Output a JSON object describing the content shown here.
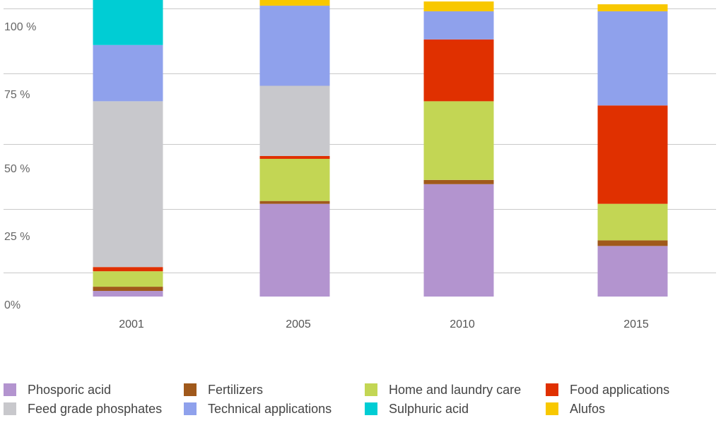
{
  "chart_data": {
    "type": "bar",
    "stacked": true,
    "categories": [
      "2001",
      "2005",
      "2010",
      "2015"
    ],
    "ylim": [
      0,
      100
    ],
    "yticks": [
      {
        "value": 0,
        "label": "0%"
      },
      {
        "value": 25,
        "label": "25 %"
      },
      {
        "value": 50,
        "label": "50 %"
      },
      {
        "value": 75,
        "label": "75 %"
      },
      {
        "value": 100,
        "label": "100 %"
      }
    ],
    "grid": true,
    "legend_position": "bottom",
    "series": [
      {
        "name": "Phosporic acid",
        "color": "#b394cf",
        "values": [
          2,
          33,
          40,
          18
        ]
      },
      {
        "name": "Fertilizers",
        "color": "#a0591b",
        "values": [
          1.5,
          1,
          1.5,
          2
        ]
      },
      {
        "name": "Home and laundry care",
        "color": "#c3d654",
        "values": [
          5.5,
          15,
          28,
          13
        ]
      },
      {
        "name": "Food applications",
        "color": "#e03000",
        "values": [
          1.5,
          1,
          22,
          35
        ]
      },
      {
        "name": "Feed grade phosphates",
        "color": "#c8c8cc",
        "values": [
          59,
          25,
          0,
          0
        ]
      },
      {
        "name": "Technical applications",
        "color": "#8fa1ec",
        "values": [
          20,
          28.5,
          10,
          33.5
        ]
      },
      {
        "name": "Sulphuric acid",
        "color": "#00cdd4",
        "values": [
          16.5,
          0,
          0,
          0
        ]
      },
      {
        "name": "Alufos",
        "color": "#f8c800",
        "values": [
          0,
          2.5,
          3.5,
          2.5
        ]
      }
    ]
  }
}
